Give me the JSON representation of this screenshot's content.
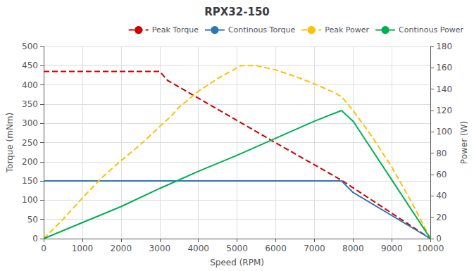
{
  "chart_data": {
    "type": "line",
    "title": "RPX32-150",
    "xlabel": "Speed (RPM)",
    "ylabel": "Torque (mNm)",
    "y2label": "Power (W)",
    "xlim": [
      0,
      10000
    ],
    "xticks": [
      0,
      1000,
      2000,
      3000,
      4000,
      5000,
      6000,
      7000,
      8000,
      9000,
      10000
    ],
    "ylim": [
      0,
      500
    ],
    "yticks": [
      0,
      50,
      100,
      150,
      200,
      250,
      300,
      350,
      400,
      450,
      500
    ],
    "y2lim": [
      0,
      180
    ],
    "y2ticks": [
      0,
      20,
      40,
      60,
      80,
      100,
      120,
      140,
      160,
      180
    ],
    "grid": true,
    "legend": "upper right",
    "series": [
      {
        "name": "Peak Torque",
        "color": "#cc0000",
        "line_style": "dashed",
        "x": [
          0,
          3000,
          3200,
          5900,
          7700,
          10000
        ],
        "values": [
          435,
          435,
          412,
          255,
          152,
          0
        ]
      },
      {
        "name": "Continous Torque",
        "color": "#2e75b6",
        "line_style": "solid",
        "x": [
          0,
          7700,
          8000,
          10000
        ],
        "values": [
          150,
          150,
          120,
          0
        ]
      },
      {
        "name": "Peak Power",
        "color": "#ffc000",
        "line_style": "dashed",
        "axis": "y2",
        "x": [
          0,
          500,
          1000,
          1500,
          2000,
          2500,
          3000,
          3300,
          3500,
          4000,
          4500,
          5000,
          5100,
          5500,
          6000,
          6500,
          7000,
          7500,
          7700,
          8000,
          8500,
          9000,
          9500,
          10000
        ],
        "values": [
          0,
          18,
          38,
          57,
          73,
          88,
          105,
          115,
          123,
          138,
          150,
          160,
          162,
          162,
          158,
          152,
          145,
          137,
          133,
          120,
          95,
          67,
          35,
          0
        ]
      },
      {
        "name": "Continous Power",
        "color": "#00b050",
        "line_style": "solid",
        "axis": "y2",
        "x": [
          0,
          1000,
          2000,
          3000,
          4000,
          5000,
          6000,
          7000,
          7700,
          8000,
          9000,
          10000
        ],
        "values": [
          0,
          15,
          30,
          47,
          63,
          78,
          94,
          110,
          120,
          110,
          55,
          0
        ]
      }
    ]
  }
}
